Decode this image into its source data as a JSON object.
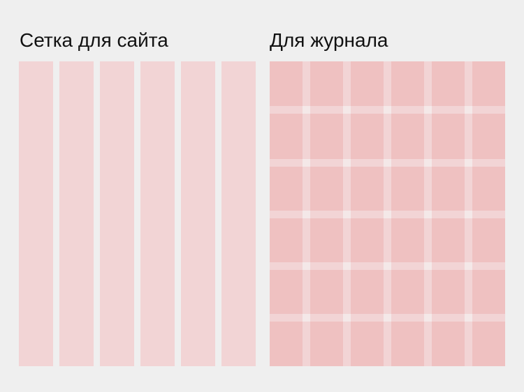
{
  "left": {
    "title": "Сетка для сайта"
  },
  "right": {
    "title": "Для журнала"
  }
}
